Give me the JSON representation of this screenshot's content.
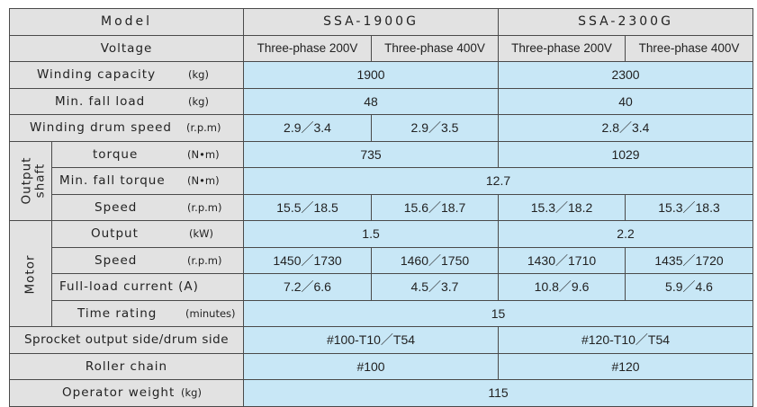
{
  "header": {
    "model_label": "Model",
    "models": [
      "SSA-1900G",
      "SSA-2300G"
    ],
    "voltage_label": "Voltage",
    "voltages": [
      "Three-phase 200V",
      "Three-phase 400V",
      "Three-phase 200V",
      "Three-phase 400V"
    ]
  },
  "rows": {
    "winding_capacity": {
      "label": "Winding capacity",
      "unit": "(kg)",
      "values": [
        "1900",
        "2300"
      ]
    },
    "min_fall_load": {
      "label": "Min. fall load",
      "unit": "(kg)",
      "values": [
        "48",
        "40"
      ]
    },
    "winding_drum_speed": {
      "label": "Winding drum speed",
      "unit": "(r.p.m)",
      "values": [
        "2.9／3.4",
        "2.9／3.5",
        "2.8／3.4"
      ]
    },
    "output_shaft": {
      "group": "Output shaft",
      "group_line1": "Output",
      "group_line2": "shaft",
      "torque": {
        "label": "torque",
        "unit": "(N•m)",
        "values": [
          "735",
          "1029"
        ]
      },
      "min_fall_torque": {
        "label": "Min. fall torque",
        "unit": "(N•m)",
        "values": [
          "12.7"
        ]
      },
      "speed": {
        "label": "Speed",
        "unit": "(r.p.m)",
        "values": [
          "15.5／18.5",
          "15.6／18.7",
          "15.3／18.2",
          "15.3／18.3"
        ]
      }
    },
    "motor": {
      "group": "Motor",
      "output": {
        "label": "Output",
        "unit": "(kW)",
        "values": [
          "1.5",
          "2.2"
        ]
      },
      "speed": {
        "label": "Speed",
        "unit": "(r.p.m)",
        "values": [
          "1450／1730",
          "1460／1750",
          "1430／1710",
          "1435／1720"
        ]
      },
      "full_load_current": {
        "label": "Full-load current (A)",
        "values": [
          "7.2／6.6",
          "4.5／3.7",
          "10.8／9.6",
          "5.9／4.6"
        ]
      },
      "time_rating": {
        "label": "Time rating",
        "unit": "(minutes)",
        "values": [
          "15"
        ]
      }
    },
    "sprocket": {
      "label": "Sprocket output side/drum side",
      "values": [
        "#100-T10／T54",
        "#120-T10／T54"
      ]
    },
    "roller_chain": {
      "label": "Roller chain",
      "values": [
        "#100",
        "#120"
      ]
    },
    "operator_weight": {
      "label": "Operator weight",
      "unit": "(kg)",
      "values": [
        "115"
      ]
    }
  },
  "colors": {
    "label_bg": "#e2e2e2",
    "value_bg": "#c8e7f6",
    "border": "#4a4a4a"
  }
}
